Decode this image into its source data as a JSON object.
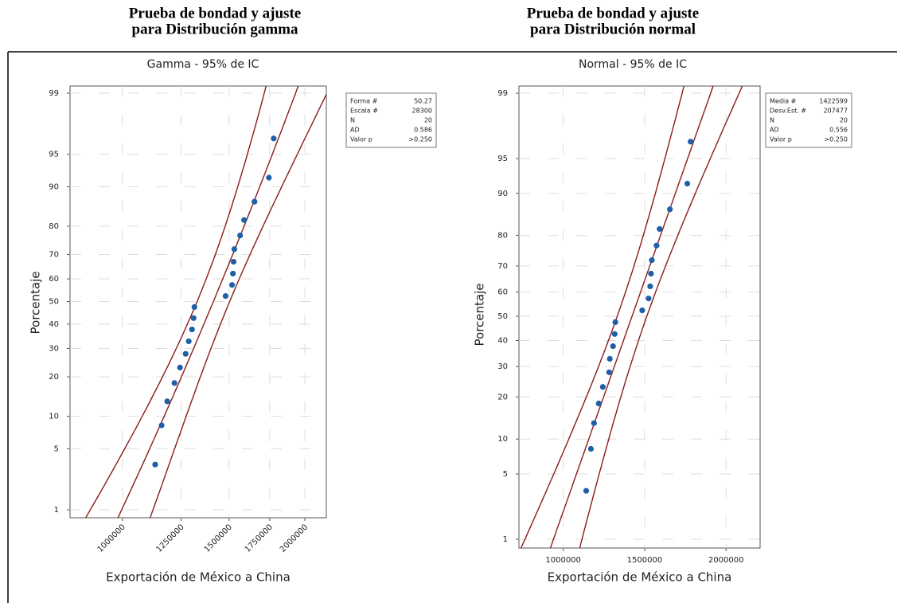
{
  "chart_data": [
    {
      "type": "scatter",
      "distribution": "gamma",
      "caption": [
        "Prueba de bondad y ajuste",
        "para Distribución gamma"
      ],
      "title": "Gamma - 95% de IC",
      "x_label": "Exportación de México a China",
      "y_label": "Porcentaje",
      "x": [
        1133000,
        1161000,
        1186000,
        1219000,
        1245000,
        1272000,
        1287000,
        1303000,
        1311000,
        1315000,
        1480000,
        1517000,
        1522000,
        1526000,
        1530000,
        1564000,
        1588000,
        1652000,
        1745000,
        1777000
      ],
      "values": [
        3.43,
        8.33,
        13.24,
        18.14,
        23.04,
        27.94,
        32.84,
        37.75,
        42.65,
        47.55,
        52.45,
        57.35,
        62.25,
        67.16,
        72.06,
        76.96,
        81.86,
        86.76,
        91.67,
        96.57
      ],
      "xscale": "log",
      "yscale": "probability",
      "xlim": [
        820000,
        2170000
      ],
      "ylim": [
        1,
        99
      ],
      "xticks": [
        1000000,
        1250000,
        1500000,
        1750000,
        2000000
      ],
      "yticks": [
        1,
        5,
        10,
        20,
        30,
        40,
        50,
        60,
        70,
        80,
        90,
        95,
        99
      ],
      "grid": true,
      "color": "#1f5fa8",
      "fit_color": "#8b1a1a",
      "stats": {
        "labels": [
          "Forma #",
          "Escala #",
          "N",
          "AD",
          "Valor p"
        ],
        "values": [
          50.27,
          28300,
          20,
          0.586,
          ">0.250"
        ]
      }
    },
    {
      "type": "scatter",
      "distribution": "normal",
      "caption": [
        "Prueba de bondad y ajuste",
        "para Distribución normal"
      ],
      "title": "Normal - 95% de IC",
      "x_label": "Exportación de México a China",
      "y_label": "Porcentaje",
      "x": [
        1141000,
        1170000,
        1189000,
        1218000,
        1243000,
        1282000,
        1286000,
        1306000,
        1316000,
        1320000,
        1485000,
        1524000,
        1534000,
        1539000,
        1544000,
        1573000,
        1592000,
        1655000,
        1762000,
        1782000
      ],
      "values": [
        3.43,
        8.33,
        13.24,
        18.14,
        23.04,
        27.94,
        32.84,
        37.75,
        42.65,
        47.55,
        52.45,
        57.35,
        62.25,
        67.16,
        72.06,
        76.96,
        81.86,
        86.76,
        91.67,
        96.57
      ],
      "xscale": "linear",
      "yscale": "probability",
      "xlim": [
        728000,
        2209000
      ],
      "ylim": [
        1,
        99
      ],
      "xticks": [
        1000000,
        1500000,
        2000000
      ],
      "yticks": [
        1,
        5,
        10,
        20,
        30,
        40,
        50,
        60,
        70,
        80,
        90,
        95,
        99
      ],
      "grid": true,
      "color": "#1f5fa8",
      "fit_color": "#8b1a1a",
      "stats": {
        "labels": [
          "Media #",
          "Desv.Est. #",
          "N",
          "AD",
          "Valor p"
        ],
        "values": [
          1422599,
          207477,
          20,
          0.556,
          ">0.250"
        ]
      }
    }
  ]
}
